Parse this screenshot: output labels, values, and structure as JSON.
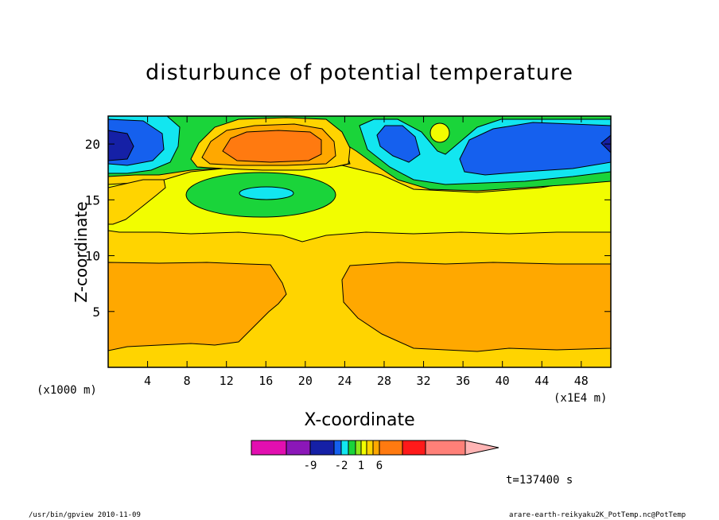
{
  "chart_data": {
    "type": "heatmap",
    "title": "disturbunce of potential temperature",
    "xlabel": "X-coordinate",
    "ylabel": "Z-coordinate",
    "x_unit_left": "(x1000 m)",
    "x_unit_right": "(x1E4 m)",
    "xlim": [
      0,
      51
    ],
    "ylim": [
      0,
      22.5
    ],
    "x_ticks": [
      4,
      8,
      12,
      16,
      20,
      24,
      28,
      32,
      36,
      40,
      44,
      48
    ],
    "y_ticks": [
      5,
      10,
      15,
      20
    ],
    "colorbar": {
      "labels": [
        "-9",
        "-2",
        "1",
        "6"
      ],
      "bins": [
        {
          "color": "#e20fb0",
          "w": 44
        },
        {
          "color": "#8b17b8",
          "w": 30
        },
        {
          "color": "#1520a6",
          "w": 30
        },
        {
          "color": "#1560ee",
          "w": 9
        },
        {
          "color": "#12e6f0",
          "w": 9
        },
        {
          "color": "#1ad43a",
          "w": 9
        },
        {
          "color": "#8ee81a",
          "w": 7
        },
        {
          "color": "#f2fd00",
          "w": 7
        },
        {
          "color": "#ffd400",
          "w": 8
        },
        {
          "color": "#ffa800",
          "w": 8
        },
        {
          "color": "#ff7a10",
          "w": 29
        },
        {
          "color": "#ff1a1a",
          "w": 29
        },
        {
          "color": "#ff8078",
          "w": 50
        }
      ],
      "overflow_color": "#ffb4b4"
    },
    "time_label": "t=137400 s"
  },
  "footer": {
    "left": "/usr/bin/gpview  2010-11-09",
    "right": "arare-earth-reikyaku2K_PotTemp.nc@PotTemp"
  }
}
